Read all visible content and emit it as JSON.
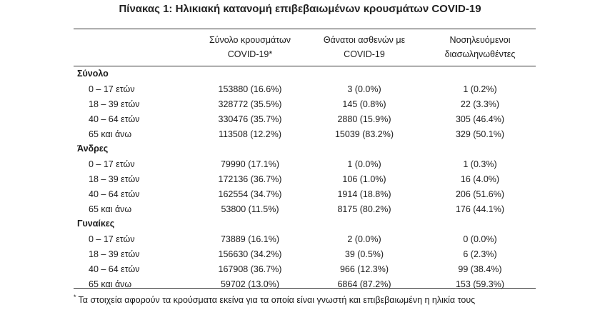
{
  "title": "Πίνακας 1: Ηλικιακή κατανομή επιβεβαιωμένων κρουσμάτων COVID-19",
  "headers": [
    {
      "line1": "Σύνολο κρουσμάτων",
      "line2": "COVID-19*"
    },
    {
      "line1": "Θάνατοι ασθενών με",
      "line2": "COVID-19"
    },
    {
      "line1": "Νοσηλευόμενοι",
      "line2": "διασωληνωθέντες"
    }
  ],
  "groups": [
    {
      "label": "Σύνολο",
      "rows": [
        {
          "age": "0 – 17 ετών",
          "cases": "153880 (16.6%)",
          "deaths": "3 (0.0%)",
          "intubated": "1 (0.2%)"
        },
        {
          "age": "18 – 39 ετών",
          "cases": "328772 (35.5%)",
          "deaths": "145 (0.8%)",
          "intubated": "22 (3.3%)"
        },
        {
          "age": "40 – 64 ετών",
          "cases": "330476 (35.7%)",
          "deaths": "2880 (15.9%)",
          "intubated": "305 (46.4%)"
        },
        {
          "age": "65 και άνω",
          "cases": "113508 (12.2%)",
          "deaths": "15039 (83.2%)",
          "intubated": "329 (50.1%)"
        }
      ]
    },
    {
      "label": "Άνδρες",
      "rows": [
        {
          "age": "0 – 17 ετών",
          "cases": "79990 (17.1%)",
          "deaths": "1 (0.0%)",
          "intubated": "1 (0.3%)"
        },
        {
          "age": "18 – 39 ετών",
          "cases": "172136 (36.7%)",
          "deaths": "106 (1.0%)",
          "intubated": "16 (4.0%)"
        },
        {
          "age": "40 – 64 ετών",
          "cases": "162554 (34.7%)",
          "deaths": "1914 (18.8%)",
          "intubated": "206 (51.6%)"
        },
        {
          "age": "65 και άνω",
          "cases": "53800 (11.5%)",
          "deaths": "8175 (80.2%)",
          "intubated": "176 (44.1%)"
        }
      ]
    },
    {
      "label": "Γυναίκες",
      "rows": [
        {
          "age": "0 – 17 ετών",
          "cases": "73889 (16.1%)",
          "deaths": "2 (0.0%)",
          "intubated": "0 (0.0%)"
        },
        {
          "age": "18 – 39 ετών",
          "cases": "156630 (34.2%)",
          "deaths": "39 (0.5%)",
          "intubated": "6 (2.3%)"
        },
        {
          "age": "40 – 64 ετών",
          "cases": "167908 (36.7%)",
          "deaths": "966 (12.3%)",
          "intubated": "99 (38.4%)"
        },
        {
          "age": "65 και άνω",
          "cases": "59702 (13.0%)",
          "deaths": "6864 (87.2%)",
          "intubated": "153 (59.3%)"
        }
      ]
    }
  ],
  "footnote": {
    "marker": "*",
    "text": "Τα στοιχεία αφορούν τα κρούσματα εκείνα για τα οποία είναι γνωστή και επιβεβαιωμένη η ηλικία τους"
  }
}
